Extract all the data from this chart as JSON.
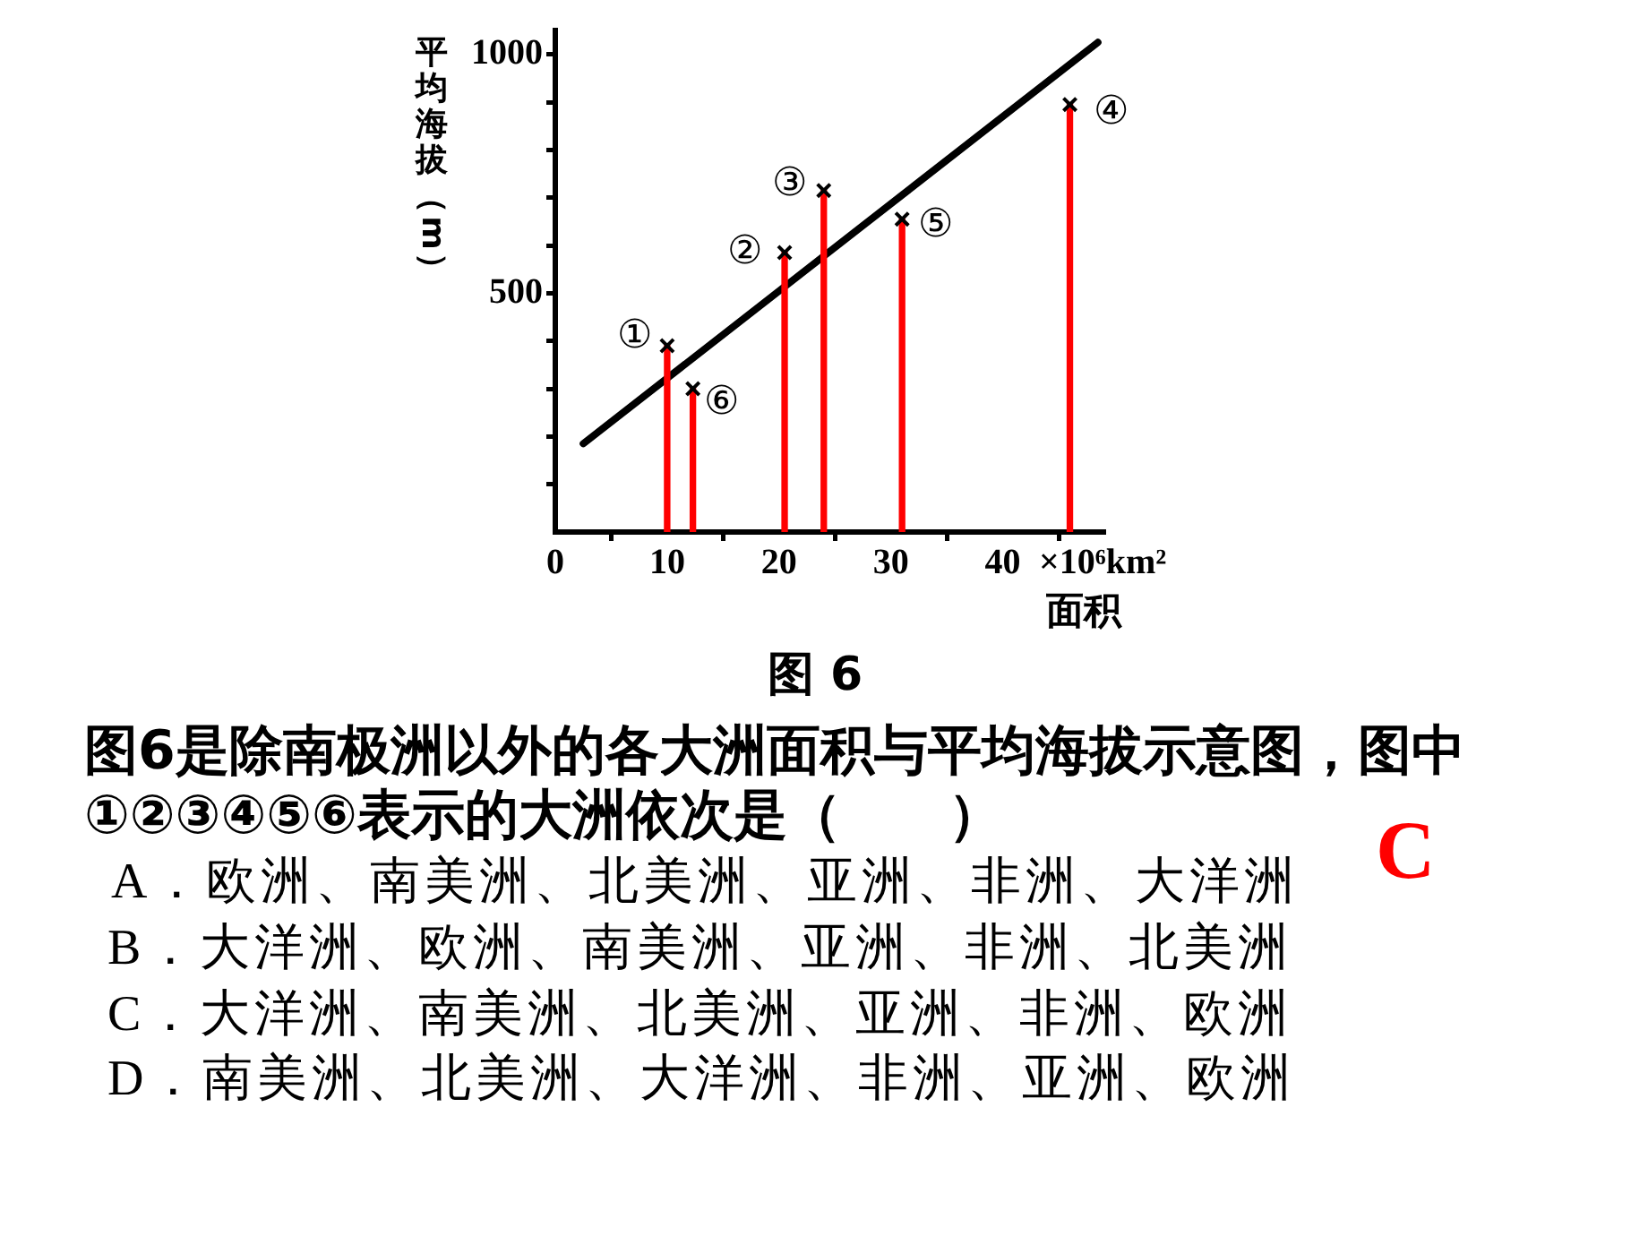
{
  "chart_data": {
    "type": "scatter",
    "xlabel": "×10⁶km²\n面积",
    "ylabel": "平均海拔（m）",
    "xlim": [
      0,
      49
    ],
    "xticks": [
      0,
      10,
      20,
      30,
      40
    ],
    "ylim": [
      0,
      1050
    ],
    "yticks": [
      {
        "value": 100,
        "label": null
      },
      {
        "value": 200,
        "label": null
      },
      {
        "value": 300,
        "label": null
      },
      {
        "value": 400,
        "label": null
      },
      500,
      {
        "value": 600,
        "label": null
      },
      {
        "value": 700,
        "label": null
      },
      {
        "value": 800,
        "label": null
      },
      {
        "value": 900,
        "label": null
      },
      1000
    ],
    "grid": false,
    "legend": false,
    "series": [
      {
        "type": "line",
        "color": "#000000",
        "x": [
          2.5,
          48.5
        ],
        "values": [
          185,
          1025
        ],
        "marker": "none",
        "line_style": "solid"
      },
      {
        "type": "bar",
        "color": "#ff0000",
        "x": [
          10,
          12.3,
          20.5,
          24,
          31,
          46
        ],
        "values": [
          390,
          300,
          585,
          715,
          655,
          895
        ]
      },
      {
        "color": "#000000",
        "x": [
          10,
          12.3,
          20.5,
          24,
          31,
          46
        ],
        "values": [
          390,
          300,
          585,
          715,
          655,
          895
        ],
        "marker": "cross"
      }
    ],
    "annotations": [
      {
        "text": "①",
        "x": 10,
        "y": 390
      },
      {
        "text": "②",
        "x": 20.5,
        "y": 585
      },
      {
        "text": "③",
        "x": 24,
        "y": 715
      },
      {
        "text": "④",
        "x": 46,
        "y": 895
      },
      {
        "text": "⑤",
        "x": 31,
        "y": 655
      },
      {
        "text": "⑥",
        "x": 12.3,
        "y": 300
      },
      "图 6",
      "图6是除南极洲以外的各大洲面积与平均海拔示意图，图中\n①②③④⑤⑥表示的大洲依次是（　　）",
      "A．欧洲、南美洲、北美洲、亚洲、非洲、大洋洲",
      "B．大洋洲、欧洲、南美洲、亚洲、非洲、北美洲",
      "C．大洋洲、南美洲、北美洲、亚洲、非洲、欧洲",
      "D．南美洲、北美洲、大洋洲、非洲、亚洲、欧洲",
      "C"
    ]
  }
}
